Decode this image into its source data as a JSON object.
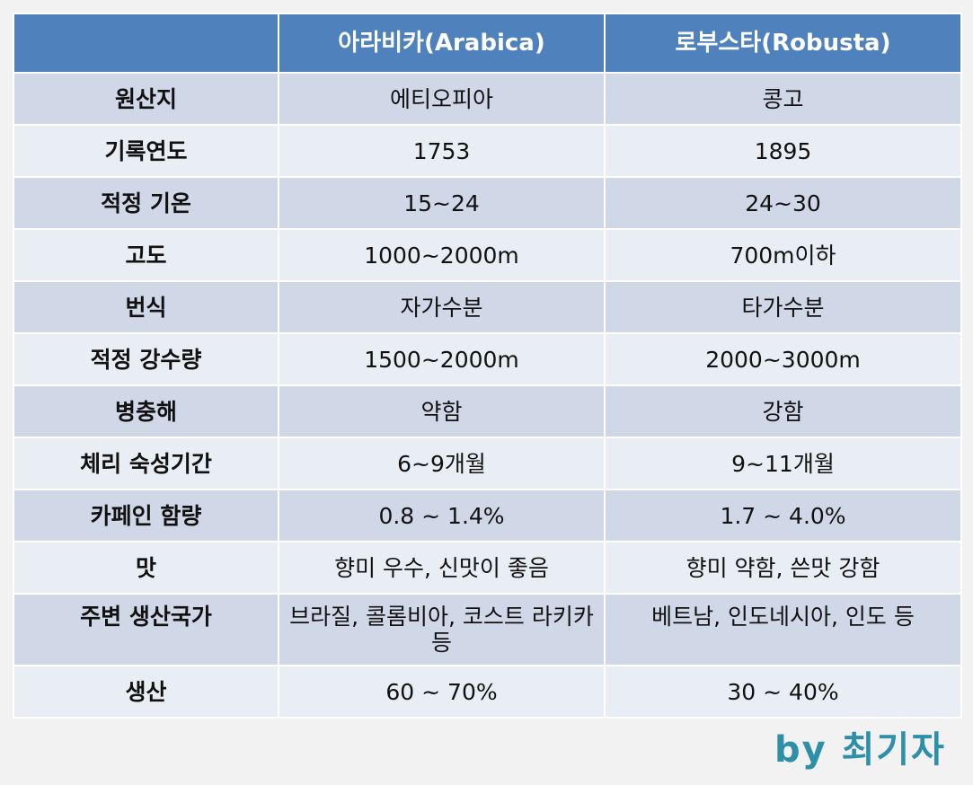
{
  "header": {
    "corner": "",
    "col1": "아라비카(Arabica)",
    "col2": "로부스타(Robusta)"
  },
  "rows": [
    {
      "label": "원산지",
      "arabica": "에티오피아",
      "robusta": "콩고"
    },
    {
      "label": "기록연도",
      "arabica": "1753",
      "robusta": "1895"
    },
    {
      "label": "적정 기온",
      "arabica": "15~24",
      "robusta": "24~30"
    },
    {
      "label": "고도",
      "arabica": "1000~2000m",
      "robusta": "700m이하"
    },
    {
      "label": "번식",
      "arabica": "자가수분",
      "robusta": "타가수분"
    },
    {
      "label": "적정 강수량",
      "arabica": "1500~2000m",
      "robusta": "2000~3000m"
    },
    {
      "label": "병충해",
      "arabica": "약함",
      "robusta": "강함"
    },
    {
      "label": "체리 숙성기간",
      "arabica": "6~9개월",
      "robusta": "9~11개월"
    },
    {
      "label": "카페인 함량",
      "arabica": "0.8 ~ 1.4%",
      "robusta": "1.7 ~ 4.0%"
    },
    {
      "label": "맛",
      "arabica": "향미 우수, 신맛이 좋음",
      "robusta": "향미 약함, 쓴맛 강함"
    },
    {
      "label": "주변 생산국가",
      "arabica": "브라질, 콜롬비아, 코스트 라키카 등",
      "robusta": "베트남, 인도네시아, 인도 등"
    },
    {
      "label": "생산",
      "arabica": "60 ~ 70%",
      "robusta": "30 ~ 40%"
    }
  ],
  "signature": "by 최기자",
  "colors": {
    "header": "#4f81bd",
    "row_odd": "#d0d8e8",
    "row_even": "#e9edf4",
    "signature": "#2e8fa8"
  }
}
